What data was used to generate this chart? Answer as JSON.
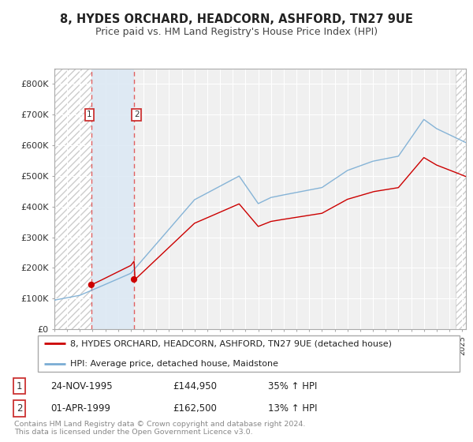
{
  "title": "8, HYDES ORCHARD, HEADCORN, ASHFORD, TN27 9UE",
  "subtitle": "Price paid vs. HM Land Registry's House Price Index (HPI)",
  "ylim": [
    0,
    850000
  ],
  "yticks": [
    0,
    100000,
    200000,
    300000,
    400000,
    500000,
    600000,
    700000,
    800000
  ],
  "ytick_labels": [
    "£0",
    "£100K",
    "£200K",
    "£300K",
    "£400K",
    "£500K",
    "£600K",
    "£700K",
    "£800K"
  ],
  "plot_bg_color": "#f0f0f0",
  "grid_color": "#ffffff",
  "red_line_color": "#cc0000",
  "blue_line_color": "#7aadd4",
  "sale1_date": 1995.9,
  "sale1_price": 144950,
  "sale1_label": "1",
  "sale2_date": 1999.25,
  "sale2_price": 162500,
  "sale2_label": "2",
  "xmin": 1993.0,
  "xmax": 2025.3,
  "legend_red_label": "8, HYDES ORCHARD, HEADCORN, ASHFORD, TN27 9UE (detached house)",
  "legend_blue_label": "HPI: Average price, detached house, Maidstone",
  "table_row1": [
    "1",
    "24-NOV-1995",
    "£144,950",
    "35% ↑ HPI"
  ],
  "table_row2": [
    "2",
    "01-APR-1999",
    "£162,500",
    "13% ↑ HPI"
  ],
  "footer": "Contains HM Land Registry data © Crown copyright and database right 2024.\nThis data is licensed under the Open Government Licence v3.0.",
  "blue_shaded_x1": 1995.9,
  "blue_shaded_x2": 1999.25,
  "hatch_left_end": 1995.9,
  "hatch_right_start": 2024.5
}
